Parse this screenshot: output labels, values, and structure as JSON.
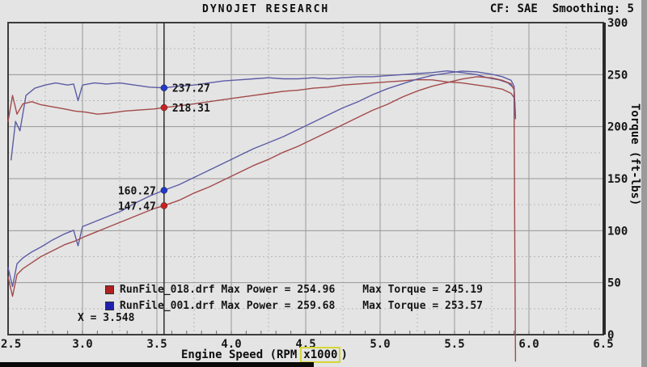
{
  "header": {
    "title": "DYNOJET RESEARCH",
    "cf_label": "CF: SAE",
    "smoothing_label": "Smoothing: 5"
  },
  "chart_data": {
    "type": "line",
    "title": "DYNOJET RESEARCH",
    "xlabel": "Engine Speed (RPM x1000)",
    "xlabel_pre": "Engine Speed (RPM",
    "xlabel_highlight": "x1000",
    "xlabel_post": ")",
    "ylabel_right": "Torque (ft-lbs)",
    "x_range": [
      2.5,
      6.5
    ],
    "y_range": [
      0,
      300
    ],
    "power_range": [
      40,
      300
    ],
    "x_ticks": [
      "2.5",
      "3.0",
      "3.5",
      "4.0",
      "4.5",
      "5.0",
      "5.5",
      "6.0",
      "6.5"
    ],
    "y_ticks": [
      "0",
      "50",
      "100",
      "150",
      "200",
      "250",
      "300"
    ],
    "grid": true,
    "cursor": {
      "x": 3.548,
      "label": "X = 3.548"
    },
    "readouts": [
      {
        "name": "runfile-001-torque",
        "run": "RunFile_001.drf",
        "metric": "Torque",
        "value": 237.27,
        "label": "237.27",
        "color": "#2038cc",
        "label_side": "right"
      },
      {
        "name": "runfile-018-torque",
        "run": "RunFile_018.drf",
        "metric": "Torque",
        "value": 218.31,
        "label": "218.31",
        "color": "#cc2020",
        "label_side": "right"
      },
      {
        "name": "runfile-001-power",
        "run": "RunFile_001.drf",
        "metric": "Power",
        "value": 160.27,
        "label": "160.27",
        "color": "#2038cc",
        "label_side": "left"
      },
      {
        "name": "runfile-018-power",
        "run": "RunFile_018.drf",
        "metric": "Power",
        "value": 147.47,
        "label": "147.47",
        "color": "#cc2020",
        "label_side": "left"
      }
    ],
    "legend": [
      {
        "color": "#b02020",
        "file": "RunFile_018.drf",
        "max_power": 254.96,
        "max_torque": 245.19,
        "power_label": "Max Power = 254.96",
        "torque_label": "Max Torque = 245.19"
      },
      {
        "color": "#2020b0",
        "file": "RunFile_001.drf",
        "max_power": 259.68,
        "max_torque": 253.57,
        "power_label": "Max Power = 259.68",
        "torque_label": "Max Torque = 253.57"
      }
    ],
    "series": [
      {
        "id": "runfile-001-torque",
        "run": "RunFile_001.drf",
        "metric": "Torque",
        "scale": "torque",
        "color": "#5c5ca6",
        "points": [
          [
            2.52,
            168
          ],
          [
            2.55,
            205
          ],
          [
            2.58,
            196
          ],
          [
            2.62,
            230
          ],
          [
            2.68,
            237
          ],
          [
            2.75,
            240
          ],
          [
            2.82,
            242
          ],
          [
            2.9,
            240
          ],
          [
            2.94,
            241
          ],
          [
            2.97,
            225
          ],
          [
            3.0,
            240
          ],
          [
            3.08,
            242
          ],
          [
            3.16,
            241
          ],
          [
            3.25,
            242
          ],
          [
            3.35,
            240
          ],
          [
            3.45,
            238
          ],
          [
            3.548,
            237.27
          ],
          [
            3.65,
            239
          ],
          [
            3.75,
            240
          ],
          [
            3.85,
            242
          ],
          [
            3.95,
            244
          ],
          [
            4.05,
            245
          ],
          [
            4.15,
            246
          ],
          [
            4.25,
            247
          ],
          [
            4.35,
            246
          ],
          [
            4.45,
            246
          ],
          [
            4.55,
            247
          ],
          [
            4.65,
            246
          ],
          [
            4.75,
            247
          ],
          [
            4.85,
            248
          ],
          [
            4.95,
            248
          ],
          [
            5.05,
            249
          ],
          [
            5.15,
            250
          ],
          [
            5.25,
            251
          ],
          [
            5.35,
            252
          ],
          [
            5.45,
            253.57
          ],
          [
            5.55,
            252
          ],
          [
            5.65,
            250
          ],
          [
            5.72,
            247
          ],
          [
            5.8,
            245
          ],
          [
            5.86,
            242
          ],
          [
            5.9,
            237
          ],
          [
            5.91,
            210
          ]
        ]
      },
      {
        "id": "runfile-018-torque",
        "run": "RunFile_018.drf",
        "metric": "Torque",
        "scale": "torque",
        "color": "#a34a4a",
        "points": [
          [
            2.5,
            205
          ],
          [
            2.53,
            230
          ],
          [
            2.56,
            212
          ],
          [
            2.6,
            222
          ],
          [
            2.66,
            224
          ],
          [
            2.72,
            221
          ],
          [
            2.8,
            219
          ],
          [
            2.88,
            217
          ],
          [
            2.95,
            215
          ],
          [
            3.02,
            214
          ],
          [
            3.1,
            212
          ],
          [
            3.18,
            213
          ],
          [
            3.28,
            215
          ],
          [
            3.38,
            216
          ],
          [
            3.48,
            217
          ],
          [
            3.548,
            218.31
          ],
          [
            3.65,
            220
          ],
          [
            3.75,
            222
          ],
          [
            3.85,
            224
          ],
          [
            3.95,
            226
          ],
          [
            4.05,
            228
          ],
          [
            4.15,
            230
          ],
          [
            4.25,
            232
          ],
          [
            4.35,
            234
          ],
          [
            4.45,
            235
          ],
          [
            4.55,
            237
          ],
          [
            4.65,
            238
          ],
          [
            4.75,
            240
          ],
          [
            4.85,
            241
          ],
          [
            4.95,
            242
          ],
          [
            5.05,
            243
          ],
          [
            5.15,
            244
          ],
          [
            5.25,
            245.19
          ],
          [
            5.35,
            245
          ],
          [
            5.45,
            243
          ],
          [
            5.55,
            242
          ],
          [
            5.65,
            240
          ],
          [
            5.75,
            238
          ],
          [
            5.82,
            236
          ],
          [
            5.88,
            232
          ],
          [
            5.9,
            228
          ]
        ]
      },
      {
        "id": "runfile-001-power",
        "run": "RunFile_001.drf",
        "metric": "Power",
        "scale": "power",
        "color": "#5c5ca6",
        "points": [
          [
            2.5,
            96
          ],
          [
            2.53,
            80
          ],
          [
            2.56,
            99
          ],
          [
            2.6,
            104
          ],
          [
            2.66,
            109
          ],
          [
            2.72,
            113
          ],
          [
            2.8,
            119
          ],
          [
            2.88,
            124
          ],
          [
            2.94,
            127
          ],
          [
            2.97,
            114
          ],
          [
            3.0,
            130
          ],
          [
            3.08,
            134
          ],
          [
            3.16,
            138
          ],
          [
            3.26,
            143
          ],
          [
            3.36,
            150
          ],
          [
            3.46,
            156
          ],
          [
            3.548,
            160.27
          ],
          [
            3.65,
            165
          ],
          [
            3.75,
            171
          ],
          [
            3.85,
            177
          ],
          [
            3.95,
            183
          ],
          [
            4.05,
            189
          ],
          [
            4.15,
            195
          ],
          [
            4.25,
            200
          ],
          [
            4.35,
            205
          ],
          [
            4.45,
            211
          ],
          [
            4.55,
            217
          ],
          [
            4.65,
            223
          ],
          [
            4.75,
            229
          ],
          [
            4.85,
            234
          ],
          [
            4.95,
            240
          ],
          [
            5.05,
            245
          ],
          [
            5.15,
            249
          ],
          [
            5.25,
            253
          ],
          [
            5.35,
            256
          ],
          [
            5.45,
            258
          ],
          [
            5.55,
            259.68
          ],
          [
            5.65,
            259
          ],
          [
            5.75,
            257
          ],
          [
            5.82,
            255
          ],
          [
            5.88,
            252
          ],
          [
            5.9,
            247
          ],
          [
            5.91,
            220
          ]
        ]
      },
      {
        "id": "runfile-018-power",
        "run": "RunFile_018.drf",
        "metric": "Power",
        "scale": "power",
        "color": "#a34a4a",
        "points": [
          [
            2.5,
            88
          ],
          [
            2.53,
            72
          ],
          [
            2.56,
            90
          ],
          [
            2.6,
            95
          ],
          [
            2.66,
            100
          ],
          [
            2.72,
            105
          ],
          [
            2.8,
            110
          ],
          [
            2.88,
            115
          ],
          [
            2.95,
            118
          ],
          [
            3.02,
            122
          ],
          [
            3.1,
            126
          ],
          [
            3.18,
            130
          ],
          [
            3.28,
            135
          ],
          [
            3.38,
            140
          ],
          [
            3.48,
            145
          ],
          [
            3.548,
            147.47
          ],
          [
            3.65,
            152
          ],
          [
            3.75,
            158
          ],
          [
            3.85,
            163
          ],
          [
            3.95,
            169
          ],
          [
            4.05,
            175
          ],
          [
            4.15,
            181
          ],
          [
            4.25,
            186
          ],
          [
            4.35,
            192
          ],
          [
            4.45,
            197
          ],
          [
            4.55,
            203
          ],
          [
            4.65,
            209
          ],
          [
            4.75,
            215
          ],
          [
            4.85,
            221
          ],
          [
            4.95,
            227
          ],
          [
            5.05,
            232
          ],
          [
            5.15,
            238
          ],
          [
            5.25,
            243
          ],
          [
            5.35,
            247
          ],
          [
            5.45,
            250
          ],
          [
            5.55,
            253
          ],
          [
            5.65,
            254.96
          ],
          [
            5.75,
            254
          ],
          [
            5.82,
            252
          ],
          [
            5.88,
            249
          ],
          [
            5.9,
            244
          ],
          [
            5.905,
            120
          ],
          [
            5.91,
            18
          ]
        ]
      }
    ]
  }
}
